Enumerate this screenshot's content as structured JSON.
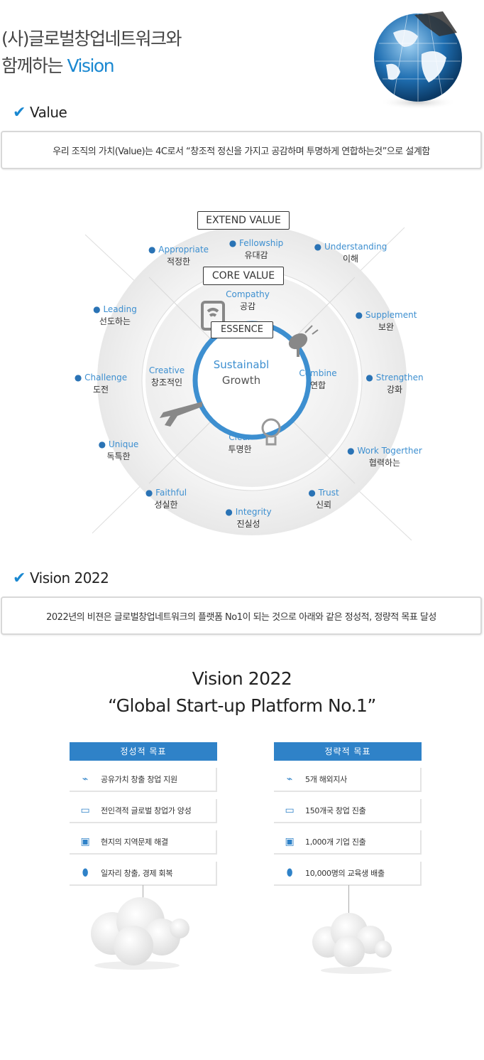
{
  "header": {
    "title_line1": "(사)글로벌창업네트워크와",
    "title_line2_prefix": "함께하는 ",
    "title_line2_accent": "Vision"
  },
  "value_section": {
    "heading": "Value",
    "description": "우리 조직의 가치(Value)는 4C로서 “창조적 정신을 가지고 공감하며 투명하게 연합하는것”으로 설계함"
  },
  "diagram": {
    "extend_label": "EXTEND VALUE",
    "core_label": "CORE VALUE",
    "essence_label": "ESSENCE",
    "center_line1": "Sustainabl",
    "center_line2": "Growth",
    "core_items": [
      {
        "en": "Compathy",
        "ko": "공감"
      },
      {
        "en": "Creative",
        "ko": "창조적인"
      },
      {
        "en": "Combine",
        "ko": "연합"
      },
      {
        "en": "Clear",
        "ko": "투명한"
      }
    ],
    "extend_items": [
      {
        "en": "Fellowship",
        "ko": "유대감"
      },
      {
        "en": "Appropriate",
        "ko": "적정한"
      },
      {
        "en": "Understanding",
        "ko": "이해"
      },
      {
        "en": "Leading",
        "ko": "선도하는"
      },
      {
        "en": "Supplement",
        "ko": "보완"
      },
      {
        "en": "Challenge",
        "ko": "도전"
      },
      {
        "en": "Strengthen",
        "ko": "강화"
      },
      {
        "en": "Unique",
        "ko": "독특한"
      },
      {
        "en": "Work Togerther",
        "ko": "협력하는"
      },
      {
        "en": "Faithful",
        "ko": "성실한"
      },
      {
        "en": "Trust",
        "ko": "신뢰"
      },
      {
        "en": "Integrity",
        "ko": "진실성"
      }
    ]
  },
  "vision_section": {
    "heading": "Vision 2022",
    "description": "2022년의 비젼은 글로벌창업네트워크의 플랫폼 No1이 되는 것으로 아래와 같은 정성적, 정량적 목표 달성",
    "title_line1": "Vision 2022",
    "title_line2": "“Global Start-up Platform No.1”"
  },
  "goals": {
    "qualitative": {
      "heading": "정성적 목표",
      "items": [
        "공유가치 창출 창업 지원",
        "전인격적 글로벌 창업가 양성",
        "현지의 지역문제 해결",
        "일자리 창출, 경제 회복"
      ]
    },
    "quantitative": {
      "heading": "정략적 목표",
      "items": [
        "5개 해외지사",
        "150개국 창업 진출",
        "1,000개 기업 진출",
        "10,000명의 교육생 배출"
      ]
    }
  },
  "colors": {
    "accent": "#1a88d1",
    "goal_header": "#2f82c8",
    "ring": "#3d8fd0"
  }
}
